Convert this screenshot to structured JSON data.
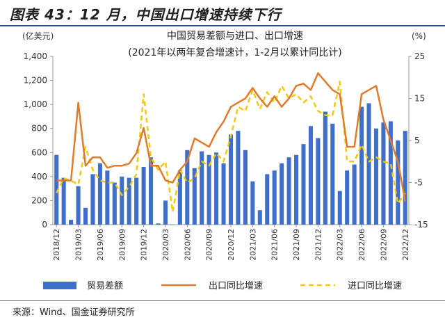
{
  "figure": {
    "title": "图表 43：12 月，中国出口增速持续下行",
    "source": "来源：Wind、国金证券研究所"
  },
  "colors": {
    "bar": "#3f6fc8",
    "export_line": "#e07b2c",
    "import_line": "#f2c811",
    "axis_text": "#333333",
    "header_rule": "#2b4f8a"
  },
  "chart_data": {
    "type": "bar",
    "title": "中国贸易差额与进口、出口增速",
    "subtitle": "(2021年以两年复合增速计，1-2月以累计同比计)",
    "left_unit": "(亿美元)",
    "right_unit": "(%)",
    "ylim_left": [
      0,
      1400
    ],
    "yticks_left": [
      "0",
      "200",
      "400",
      "600",
      "800",
      "1,000",
      "1,200",
      "1,400"
    ],
    "ylim_right": [
      -15,
      25
    ],
    "yticks_right": [
      "-15",
      "-5",
      "5",
      "15",
      "25"
    ],
    "x_tick_labels": [
      "2018/12",
      "2019/03",
      "2019/06",
      "2019/09",
      "2019/12",
      "2020/03",
      "2020/06",
      "2020/09",
      "2020/12",
      "2021/03",
      "2021/06",
      "2021/09",
      "2021/12",
      "2022/03",
      "2022/06",
      "2022/09",
      "2022/12"
    ],
    "legend": {
      "position": "bottom",
      "bar_label": "贸易差额",
      "export_label": "出口同比增速",
      "import_label": "进口同比增速"
    },
    "series": [
      {
        "name": "贸易差额",
        "kind": "bar",
        "values": [
          580,
          390,
          40,
          320,
          140,
          420,
          510,
          450,
          350,
          400,
          390,
          390,
          480,
          560,
          10,
          200,
          0,
          450,
          620,
          470,
          610,
          580,
          600,
          510,
          750,
          780,
          620,
          360,
          120,
          420,
          450,
          510,
          560,
          580,
          670,
          820,
          720,
          940,
          840,
          280,
          450,
          500,
          980,
          1010,
          800,
          850,
          860,
          700,
          780
        ]
      },
      {
        "name": "出口同比增速",
        "kind": "line",
        "values": [
          -4.5,
          -4.5,
          -4.5,
          14,
          -1,
          1,
          1,
          -1.5,
          -1,
          -1,
          -0.5,
          2,
          8,
          -1,
          -1,
          -4.5,
          -5,
          -2,
          0,
          5.5,
          4.5,
          3.5,
          7,
          9.5,
          13,
          14,
          15,
          17.5,
          15,
          13,
          15.5,
          13,
          15,
          18,
          18.5,
          17,
          21,
          19,
          17,
          16,
          3.5,
          3.5,
          16,
          17,
          18,
          10,
          5,
          0,
          -9.5
        ]
      },
      {
        "name": "进口同比增速",
        "kind": "line",
        "dashed": true,
        "values": [
          -7.5,
          -4,
          -4.5,
          -5.5,
          3.5,
          -2,
          -4.5,
          -5,
          -5,
          -8,
          -6,
          -3,
          16,
          1,
          -2,
          0,
          -12,
          -2,
          -5,
          -4,
          0,
          -1,
          2,
          0,
          6,
          13,
          12,
          17,
          12.5,
          16.5,
          14,
          18,
          15,
          16,
          14,
          15.5,
          12,
          11,
          11,
          19,
          0,
          0,
          4,
          0,
          1,
          0,
          -0.5,
          -10,
          -7.5
        ]
      }
    ]
  }
}
